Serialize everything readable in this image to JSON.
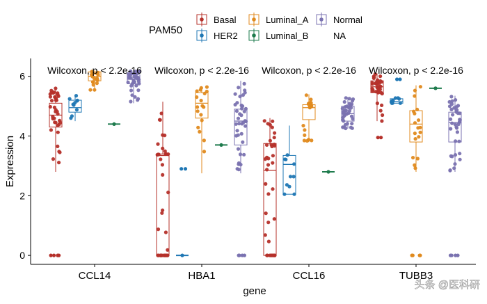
{
  "chart_data": {
    "type": "boxplot",
    "xlabel": "gene",
    "ylabel": "Expression",
    "ylim": [
      -0.3,
      6.6
    ],
    "yticks": [
      0,
      2,
      4,
      6
    ],
    "categories": [
      "CCL14",
      "HBA1",
      "CCL16",
      "TUBB3"
    ],
    "legend": {
      "title": "PAM50",
      "position": "top",
      "entries": [
        "Basal",
        "Luminal_A",
        "Normal",
        "HER2",
        "Luminal_B",
        "NA"
      ]
    },
    "annotations": [
      "Wilcoxon, p < 2.2e-16",
      "Wilcoxon, p < 2.2e-16",
      "Wilcoxon, p < 2.2e-16",
      "Wilcoxon, p < 2.2e-16"
    ],
    "series": [
      {
        "name": "Basal",
        "color": "#b5302a"
      },
      {
        "name": "HER2",
        "color": "#1f77b4"
      },
      {
        "name": "Luminal_A",
        "color": "#e08a1e"
      },
      {
        "name": "Luminal_B",
        "color": "#1e7b4d"
      },
      {
        "name": "Normal",
        "color": "#7a72b0"
      }
    ],
    "boxes": [
      {
        "category": "CCL14",
        "series": "Basal",
        "min": 2.8,
        "q1": 4.3,
        "median": 4.7,
        "q3": 5.1,
        "max": 5.6,
        "outliers": [
          0
        ]
      },
      {
        "category": "CCL14",
        "series": "HER2",
        "min": 4.5,
        "q1": 4.8,
        "median": 4.95,
        "q3": 5.2,
        "max": 5.35,
        "outliers": []
      },
      {
        "category": "CCL14",
        "series": "Luminal_A",
        "min": 5.5,
        "q1": 5.85,
        "median": 6.0,
        "q3": 6.15,
        "max": 6.2,
        "outliers": []
      },
      {
        "category": "CCL14",
        "series": "Luminal_B",
        "min": 4.4,
        "q1": 4.4,
        "median": 4.4,
        "q3": 4.4,
        "max": 4.4,
        "outliers": []
      },
      {
        "category": "CCL14",
        "series": "Normal",
        "min": 5.1,
        "q1": 5.75,
        "median": 5.9,
        "q3": 6.05,
        "max": 6.2,
        "outliers": []
      },
      {
        "category": "HBA1",
        "series": "Basal",
        "min": 0,
        "q1": 0,
        "median": 3.35,
        "q3": 3.4,
        "max": 5.15,
        "outliers": []
      },
      {
        "category": "HBA1",
        "series": "HER2",
        "min": 0,
        "q1": 0,
        "median": 0,
        "q3": 0,
        "max": 0,
        "outliers": [
          2.9
        ]
      },
      {
        "category": "HBA1",
        "series": "Luminal_A",
        "min": 2.75,
        "q1": 4.6,
        "median": 5.1,
        "q3": 5.45,
        "max": 5.65,
        "outliers": []
      },
      {
        "category": "HBA1",
        "series": "Luminal_B",
        "min": 3.7,
        "q1": 3.7,
        "median": 3.7,
        "q3": 3.7,
        "max": 3.7,
        "outliers": []
      },
      {
        "category": "HBA1",
        "series": "Normal",
        "min": 2.75,
        "q1": 3.7,
        "median": 4.5,
        "q3": 4.9,
        "max": 5.85,
        "outliers": [
          0
        ]
      },
      {
        "category": "CCL16",
        "series": "Basal",
        "min": 0,
        "q1": 0,
        "median": 2.85,
        "q3": 3.75,
        "max": 4.6,
        "outliers": []
      },
      {
        "category": "CCL16",
        "series": "HER2",
        "min": 2.05,
        "q1": 2.05,
        "median": 3.05,
        "q3": 3.35,
        "max": 4.35,
        "outliers": []
      },
      {
        "category": "CCL16",
        "series": "Luminal_A",
        "min": 3.8,
        "q1": 4.55,
        "median": 4.95,
        "q3": 5.05,
        "max": 5.4,
        "outliers": []
      },
      {
        "category": "CCL16",
        "series": "Luminal_B",
        "min": 2.8,
        "q1": 2.8,
        "median": 2.8,
        "q3": 2.8,
        "max": 2.8,
        "outliers": []
      },
      {
        "category": "CCL16",
        "series": "Normal",
        "min": 4.25,
        "q1": 4.5,
        "median": 4.75,
        "q3": 5.0,
        "max": 5.3,
        "outliers": []
      },
      {
        "category": "TUBB3",
        "series": "Basal",
        "min": 4.5,
        "q1": 5.45,
        "median": 5.65,
        "q3": 5.85,
        "max": 6.1,
        "outliers": [
          3.95
        ]
      },
      {
        "category": "TUBB3",
        "series": "HER2",
        "min": 5.1,
        "q1": 5.1,
        "median": 5.15,
        "q3": 5.25,
        "max": 5.3,
        "outliers": [
          5.9
        ]
      },
      {
        "category": "TUBB3",
        "series": "Luminal_A",
        "min": 2.8,
        "q1": 3.8,
        "median": 4.4,
        "q3": 4.85,
        "max": 5.7,
        "outliers": [
          0
        ]
      },
      {
        "category": "TUBB3",
        "series": "Luminal_B",
        "min": 5.6,
        "q1": 5.6,
        "median": 5.6,
        "q3": 5.6,
        "max": 5.6,
        "outliers": []
      },
      {
        "category": "TUBB3",
        "series": "Normal",
        "min": 2.8,
        "q1": 3.8,
        "median": 4.45,
        "q3": 4.8,
        "max": 5.35,
        "outliers": [
          0
        ]
      }
    ],
    "grid": false
  },
  "watermark": {
    "text": "头条 @医科研"
  }
}
